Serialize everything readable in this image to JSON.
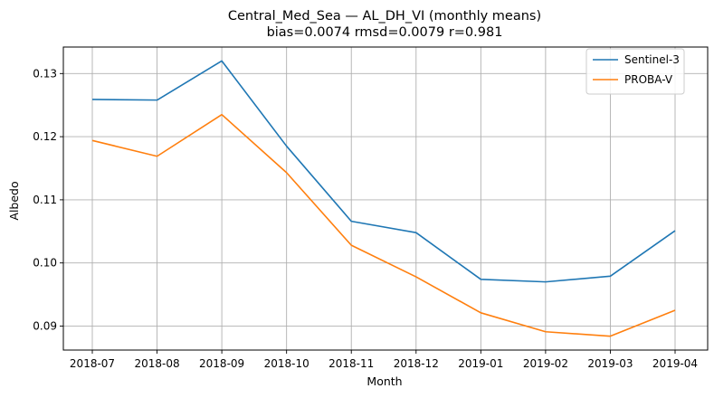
{
  "chart_data": {
    "type": "line",
    "title": "Central_Med_Sea — AL_DH_VI (monthly means)",
    "subtitle": "bias=0.0074  rmsd=0.0079  r=0.981",
    "xlabel": "Month",
    "ylabel": "Albedo",
    "categories": [
      "2018-07",
      "2018-08",
      "2018-09",
      "2018-10",
      "2018-11",
      "2018-12",
      "2019-01",
      "2019-02",
      "2019-03",
      "2019-04"
    ],
    "yticks": [
      "0.09",
      "0.10",
      "0.11",
      "0.12",
      "0.13"
    ],
    "ylim": [
      0.0862,
      0.1342
    ],
    "grid": true,
    "legend_position": "top-right",
    "series": [
      {
        "name": "Sentinel-3",
        "color": "#1f77b4",
        "values": [
          0.1259,
          0.1258,
          0.132,
          0.1185,
          0.1066,
          0.1048,
          0.0974,
          0.097,
          0.0979,
          0.1051
        ]
      },
      {
        "name": "PROBA-V",
        "color": "#ff7f0e",
        "values": [
          0.1194,
          0.1169,
          0.1235,
          0.1143,
          0.1028,
          0.0978,
          0.0921,
          0.0891,
          0.0884,
          0.0925
        ]
      }
    ]
  }
}
